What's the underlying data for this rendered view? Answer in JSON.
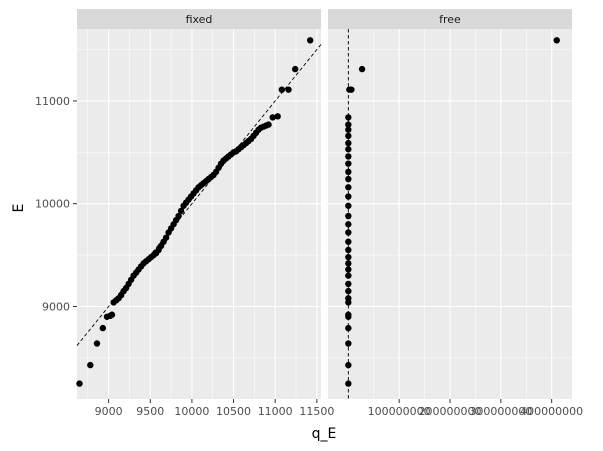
{
  "chart_data": {
    "type": "scatter",
    "xlabel": "q_E",
    "ylabel": "E",
    "y_ticks": [
      9000,
      10000,
      11000
    ],
    "y_tick_labels": [
      "9000",
      "10000",
      "11000"
    ],
    "ylim": [
      8100,
      11700
    ],
    "grid": true,
    "panels": [
      {
        "name": "fixed",
        "xlim": [
          8620,
          11550
        ],
        "x_ticks": [
          9000,
          9500,
          10000,
          10500,
          11000,
          11500
        ],
        "x_tick_labels": [
          "9000",
          "9500",
          "10000",
          "10500",
          "11000",
          "11500"
        ],
        "reference_line": {
          "slope": 1,
          "intercept": 0
        },
        "points": [
          [
            8650,
            8250
          ],
          [
            8780,
            8430
          ],
          [
            8860,
            8640
          ],
          [
            8930,
            8790
          ],
          [
            8980,
            8900
          ],
          [
            9020,
            8910
          ],
          [
            9040,
            8920
          ],
          [
            9060,
            9040
          ],
          [
            9090,
            9060
          ],
          [
            9120,
            9080
          ],
          [
            9150,
            9110
          ],
          [
            9180,
            9150
          ],
          [
            9210,
            9180
          ],
          [
            9240,
            9220
          ],
          [
            9270,
            9260
          ],
          [
            9300,
            9300
          ],
          [
            9330,
            9330
          ],
          [
            9360,
            9360
          ],
          [
            9390,
            9390
          ],
          [
            9420,
            9420
          ],
          [
            9450,
            9440
          ],
          [
            9480,
            9460
          ],
          [
            9510,
            9480
          ],
          [
            9540,
            9500
          ],
          [
            9570,
            9520
          ],
          [
            9600,
            9550
          ],
          [
            9630,
            9590
          ],
          [
            9660,
            9630
          ],
          [
            9690,
            9670
          ],
          [
            9720,
            9720
          ],
          [
            9750,
            9760
          ],
          [
            9780,
            9800
          ],
          [
            9810,
            9840
          ],
          [
            9840,
            9880
          ],
          [
            9870,
            9930
          ],
          [
            9900,
            9980
          ],
          [
            9930,
            10010
          ],
          [
            9960,
            10040
          ],
          [
            9990,
            10070
          ],
          [
            10020,
            10100
          ],
          [
            10050,
            10130
          ],
          [
            10080,
            10160
          ],
          [
            10110,
            10180
          ],
          [
            10140,
            10200
          ],
          [
            10170,
            10220
          ],
          [
            10200,
            10240
          ],
          [
            10230,
            10260
          ],
          [
            10260,
            10280
          ],
          [
            10290,
            10310
          ],
          [
            10320,
            10350
          ],
          [
            10350,
            10390
          ],
          [
            10380,
            10420
          ],
          [
            10410,
            10440
          ],
          [
            10440,
            10460
          ],
          [
            10470,
            10480
          ],
          [
            10500,
            10500
          ],
          [
            10530,
            10510
          ],
          [
            10560,
            10530
          ],
          [
            10590,
            10550
          ],
          [
            10620,
            10570
          ],
          [
            10650,
            10590
          ],
          [
            10680,
            10610
          ],
          [
            10710,
            10630
          ],
          [
            10740,
            10660
          ],
          [
            10770,
            10690
          ],
          [
            10800,
            10720
          ],
          [
            10830,
            10740
          ],
          [
            10860,
            10750
          ],
          [
            10890,
            10760
          ],
          [
            10920,
            10770
          ],
          [
            10970,
            10840
          ],
          [
            11030,
            10850
          ],
          [
            11080,
            11110
          ],
          [
            11160,
            11110
          ],
          [
            11240,
            11310
          ],
          [
            11420,
            11590
          ]
        ]
      },
      {
        "name": "free",
        "xlim": [
          -40000000,
          440000000
        ],
        "x_ticks": [
          100000000,
          200000000,
          300000000,
          400000000
        ],
        "x_tick_labels": [
          "100000000",
          "200000000",
          "300000000",
          "400000000"
        ],
        "reference_line": {
          "vertical_at": 0
        },
        "points": [
          [
            0,
            8250
          ],
          [
            0,
            8430
          ],
          [
            0,
            8640
          ],
          [
            0,
            8790
          ],
          [
            0,
            8900
          ],
          [
            0,
            8920
          ],
          [
            0,
            9040
          ],
          [
            0,
            9080
          ],
          [
            0,
            9150
          ],
          [
            0,
            9220
          ],
          [
            0,
            9300
          ],
          [
            0,
            9360
          ],
          [
            0,
            9420
          ],
          [
            0,
            9480
          ],
          [
            0,
            9550
          ],
          [
            0,
            9630
          ],
          [
            0,
            9720
          ],
          [
            0,
            9800
          ],
          [
            0,
            9880
          ],
          [
            0,
            9980
          ],
          [
            0,
            10070
          ],
          [
            0,
            10160
          ],
          [
            0,
            10240
          ],
          [
            0,
            10310
          ],
          [
            0,
            10390
          ],
          [
            0,
            10460
          ],
          [
            0,
            10530
          ],
          [
            0,
            10590
          ],
          [
            0,
            10660
          ],
          [
            0,
            10720
          ],
          [
            0,
            10770
          ],
          [
            0,
            10840
          ],
          [
            2000000,
            11110
          ],
          [
            6000000,
            11110
          ],
          [
            27000000,
            11310
          ],
          [
            410000000,
            11590
          ]
        ]
      }
    ]
  }
}
